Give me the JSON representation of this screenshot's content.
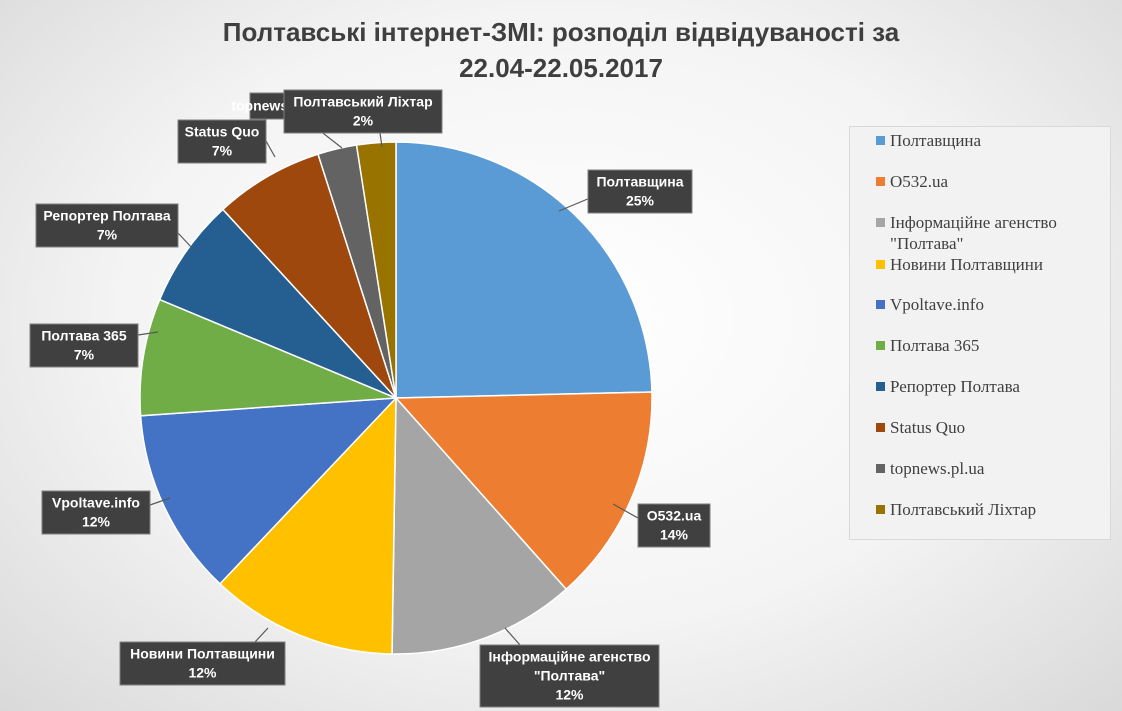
{
  "chart_data": {
    "type": "pie",
    "title_line1": "Полтавські інтернет-ЗМІ: розподіл відвідуваності за",
    "title_line2": "22.04-22.05.2017",
    "legend_position": "right",
    "slices": [
      {
        "name": "Полтавщина",
        "value": 25,
        "label": "25%",
        "color": "#5b9bd5"
      },
      {
        "name": "О532.ua",
        "value": 14,
        "label": "14%",
        "color": "#ed7d31"
      },
      {
        "name": "Інформаційне агенство \"Полтава\"",
        "value": 12,
        "label": "12%",
        "color": "#a5a5a5"
      },
      {
        "name": "Новини Полтавщини",
        "value": 12,
        "label": "12%",
        "color": "#ffc000"
      },
      {
        "name": "Vpoltave.info",
        "value": 12,
        "label": "12%",
        "color": "#4472c4"
      },
      {
        "name": "Полтава 365",
        "value": 7.5,
        "label": "7%",
        "color": "#70ad47"
      },
      {
        "name": "Репортер Полтава",
        "value": 7,
        "label": "7%",
        "color": "#255e91"
      },
      {
        "name": "Status Quo",
        "value": 7,
        "label": "7%",
        "color": "#9e480e"
      },
      {
        "name": "topnews.pl.ua",
        "value": 2.5,
        "label": "",
        "color": "#636363"
      },
      {
        "name": "Полтавський Ліхтар",
        "value": 2.5,
        "label": "2%",
        "color": "#997300"
      }
    ],
    "callouts": [
      {
        "slice": 0,
        "lines": [
          "Полтавщина",
          "25%"
        ]
      },
      {
        "slice": 1,
        "lines": [
          "О532.ua",
          "14%"
        ]
      },
      {
        "slice": 2,
        "lines": [
          "Інформаційне агенство",
          "\"Полтава\"",
          "12%"
        ]
      },
      {
        "slice": 3,
        "lines": [
          "Новини Полтавщини",
          "12%"
        ]
      },
      {
        "slice": 4,
        "lines": [
          "Vpoltave.info",
          "12%"
        ]
      },
      {
        "slice": 5,
        "lines": [
          "Полтава 365",
          "7%"
        ]
      },
      {
        "slice": 6,
        "lines": [
          "Репортер Полтава",
          "7%"
        ]
      },
      {
        "slice": 7,
        "lines": [
          "Status Quo",
          "7%"
        ]
      },
      {
        "slice": 8,
        "lines": [
          "topnews.pl.ua"
        ]
      },
      {
        "slice": 9,
        "lines": [
          "Полтавський Ліхтар",
          "2%"
        ]
      }
    ],
    "legend_items": [
      "Полтавщина",
      "О532.ua",
      "Інформаційне агенство \"Полтава\"",
      "Новини Полтавщини",
      "Vpoltave.info",
      "Полтава 365",
      "Репортер Полтава",
      "Status Quo",
      "topnews.pl.ua",
      "Полтавський Ліхтар"
    ]
  }
}
